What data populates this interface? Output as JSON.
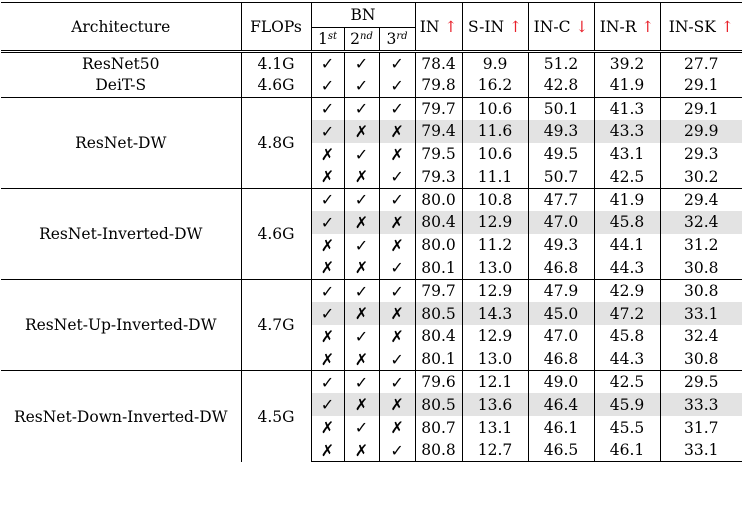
{
  "header": {
    "architecture": "Architecture",
    "flops": "FLOPs",
    "bn": "BN",
    "bn_sub": [
      {
        "num": "1",
        "sup": "st"
      },
      {
        "num": "2",
        "sup": "nd"
      },
      {
        "num": "3",
        "sup": "rd"
      }
    ],
    "metrics": [
      {
        "label": "IN",
        "arrow": "↑"
      },
      {
        "label": "S-IN",
        "arrow": "↑"
      },
      {
        "label": "IN-C",
        "arrow": "↓"
      },
      {
        "label": "IN-R",
        "arrow": "↑"
      },
      {
        "label": "IN-SK",
        "arrow": "↑"
      }
    ]
  },
  "check": "✓",
  "cross": "✗",
  "groups": [
    {
      "architecture": "",
      "rows": [
        {
          "arch": "ResNet50",
          "flops": "4.1G",
          "bn": [
            "✓",
            "✓",
            "✓"
          ],
          "vals": [
            "78.4",
            "9.9",
            "51.2",
            "39.2",
            "27.7"
          ],
          "shaded": false
        },
        {
          "arch": "DeiT-S",
          "flops": "4.6G",
          "bn": [
            "✓",
            "✓",
            "✓"
          ],
          "vals": [
            "79.8",
            "16.2",
            "42.8",
            "41.9",
            "29.1"
          ],
          "shaded": false
        }
      ]
    },
    {
      "architecture": "ResNet-DW",
      "flops": "4.8G",
      "rows": [
        {
          "bn": [
            "✓",
            "✓",
            "✓"
          ],
          "vals": [
            "79.7",
            "10.6",
            "50.1",
            "41.3",
            "29.1"
          ],
          "shaded": false
        },
        {
          "bn": [
            "✓",
            "✗",
            "✗"
          ],
          "vals": [
            "79.4",
            "11.6",
            "49.3",
            "43.3",
            "29.9"
          ],
          "shaded": true
        },
        {
          "bn": [
            "✗",
            "✓",
            "✗"
          ],
          "vals": [
            "79.5",
            "10.6",
            "49.5",
            "43.1",
            "29.3"
          ],
          "shaded": false
        },
        {
          "bn": [
            "✗",
            "✗",
            "✓"
          ],
          "vals": [
            "79.3",
            "11.1",
            "50.7",
            "42.5",
            "30.2"
          ],
          "shaded": false
        }
      ]
    },
    {
      "architecture": "ResNet-Inverted-DW",
      "flops": "4.6G",
      "rows": [
        {
          "bn": [
            "✓",
            "✓",
            "✓"
          ],
          "vals": [
            "80.0",
            "10.8",
            "47.7",
            "41.9",
            "29.4"
          ],
          "shaded": false
        },
        {
          "bn": [
            "✓",
            "✗",
            "✗"
          ],
          "vals": [
            "80.4",
            "12.9",
            "47.0",
            "45.8",
            "32.4"
          ],
          "shaded": true
        },
        {
          "bn": [
            "✗",
            "✓",
            "✗"
          ],
          "vals": [
            "80.0",
            "11.2",
            "49.3",
            "44.1",
            "31.2"
          ],
          "shaded": false
        },
        {
          "bn": [
            "✗",
            "✗",
            "✓"
          ],
          "vals": [
            "80.1",
            "13.0",
            "46.8",
            "44.3",
            "30.8"
          ],
          "shaded": false
        }
      ]
    },
    {
      "architecture": "ResNet-Up-Inverted-DW",
      "flops": "4.7G",
      "rows": [
        {
          "bn": [
            "✓",
            "✓",
            "✓"
          ],
          "vals": [
            "79.7",
            "12.9",
            "47.9",
            "42.9",
            "30.8"
          ],
          "shaded": false
        },
        {
          "bn": [
            "✓",
            "✗",
            "✗"
          ],
          "vals": [
            "80.5",
            "14.3",
            "45.0",
            "47.2",
            "33.1"
          ],
          "shaded": true
        },
        {
          "bn": [
            "✗",
            "✓",
            "✗"
          ],
          "vals": [
            "80.4",
            "12.9",
            "47.0",
            "45.8",
            "32.4"
          ],
          "shaded": false
        },
        {
          "bn": [
            "✗",
            "✗",
            "✓"
          ],
          "vals": [
            "80.1",
            "13.0",
            "46.8",
            "44.3",
            "30.8"
          ],
          "shaded": false
        }
      ]
    },
    {
      "architecture": "ResNet-Down-Inverted-DW",
      "flops": "4.5G",
      "rows": [
        {
          "bn": [
            "✓",
            "✓",
            "✓"
          ],
          "vals": [
            "79.6",
            "12.1",
            "49.0",
            "42.5",
            "29.5"
          ],
          "shaded": false
        },
        {
          "bn": [
            "✓",
            "✗",
            "✗"
          ],
          "vals": [
            "80.5",
            "13.6",
            "46.4",
            "45.9",
            "33.3"
          ],
          "shaded": true
        },
        {
          "bn": [
            "✗",
            "✓",
            "✗"
          ],
          "vals": [
            "80.7",
            "13.1",
            "46.1",
            "45.5",
            "31.7"
          ],
          "shaded": false
        },
        {
          "bn": [
            "✗",
            "✗",
            "✓"
          ],
          "vals": [
            "80.8",
            "12.7",
            "46.5",
            "46.1",
            "33.1"
          ],
          "shaded": false
        }
      ]
    }
  ]
}
